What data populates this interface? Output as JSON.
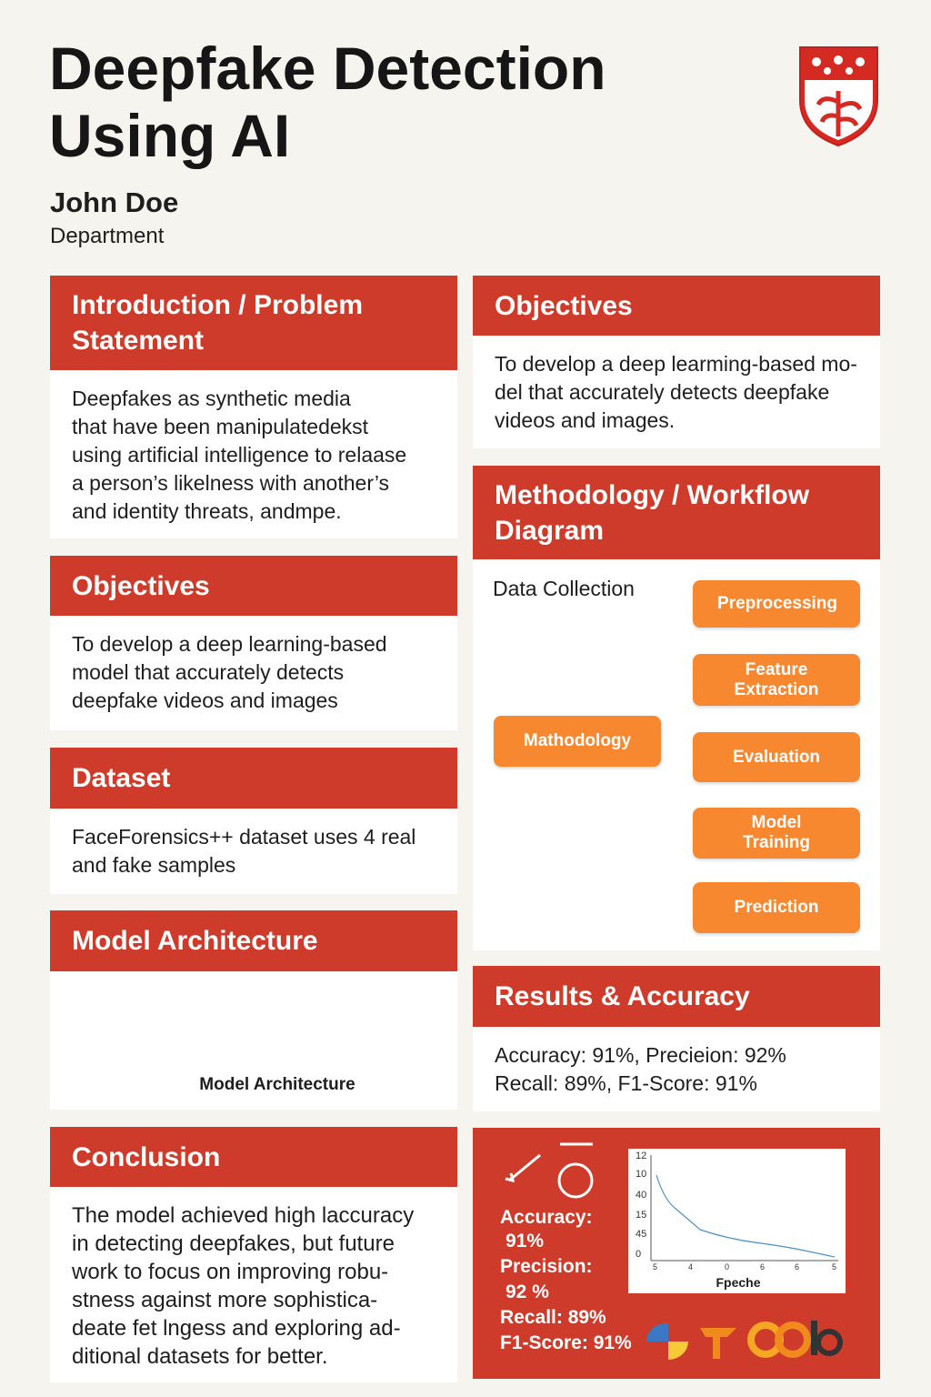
{
  "header": {
    "title": "Deepfake Detection Using AI",
    "author": "John Doe",
    "department": "Department"
  },
  "sections": [
    {
      "title": "Introduction / Problem Statement",
      "lines": [
        "Deepfakes as synthetic media",
        "that have been manipulatedekst",
        "using artificial intelligence to relaase",
        "a person’s likelness with another’s",
        "and identity threats, andmpe."
      ]
    },
    {
      "title": "Objectives",
      "lines": [
        "To develop a deep learning-based",
        "model that accurately detects",
        "deepfake videos and images"
      ]
    },
    {
      "title": "Dataset",
      "lines": [
        "FaceForensics++ dataset uses 4 real",
        "and fake samples"
      ]
    },
    {
      "title": "Model Architecture",
      "caption": "Model Architecture"
    },
    {
      "title": "Conclusion",
      "lines": [
        "The model achieved high laccuracy",
        "in detecting deepfakes, but future",
        "work to focus on improving robu-",
        "stness against more sophistica-",
        "deate fet lngess and exploring ad-",
        "ditional datasets for better."
      ]
    },
    {
      "title": "Objectives",
      "lines": [
        "To develop a deep learming-based mo-",
        "del that accurately detects deepfake",
        "videos and images."
      ]
    },
    {
      "title": "Methodology / Workflow Diagram",
      "nodes": [
        "Data Collection",
        "Preprocessing",
        "Feature Extraction",
        "Evaluation",
        "Model Training",
        "Prediction",
        "Mathodology"
      ]
    },
    {
      "title": "Results & Accuracy",
      "lines": [
        "Accuracy: 91%, Precieion: 92%",
        "Recall: 89%, F1-Score: 91%"
      ]
    }
  ],
  "panel": {
    "metrics": [
      "Accuracy:",
      "91%",
      "Precision:",
      "92 %",
      "Recall: 89%",
      "F1-Score: 91%"
    ],
    "chart": {
      "y_labels": [
        "12",
        "10",
        "40",
        "15",
        "45",
        "0"
      ],
      "x_labels": [
        "5",
        "4",
        "0",
        "6",
        "6",
        "5"
      ],
      "x_title": "Fpeche"
    }
  }
}
